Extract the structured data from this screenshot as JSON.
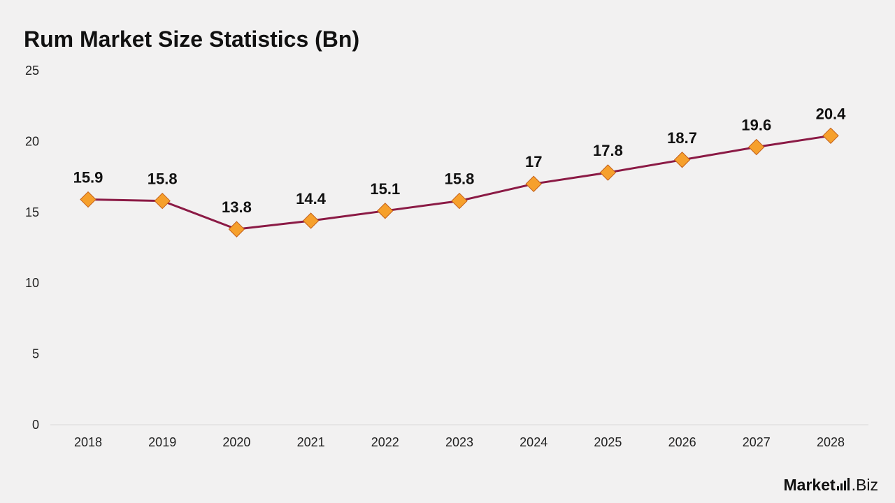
{
  "title": "Rum Market Size Statistics (Bn)",
  "brand": {
    "part1": "Market",
    "part2": ".Biz"
  },
  "colors": {
    "line": "#8b1a45",
    "marker_fill": "#f6a02c",
    "marker_stroke": "#c4601a",
    "axis": "#d9d9d9",
    "background": "#f2f1f1"
  },
  "chart_data": {
    "type": "line",
    "title": "Rum Market Size Statistics (Bn)",
    "categories": [
      "2018",
      "2019",
      "2020",
      "2021",
      "2022",
      "2023",
      "2024",
      "2025",
      "2026",
      "2027",
      "2028"
    ],
    "series": [
      {
        "values": [
          15.9,
          15.8,
          13.8,
          14.4,
          15.1,
          15.8,
          17,
          17.8,
          18.7,
          19.6,
          20.4
        ],
        "labels": [
          "15.9",
          "15.8",
          "13.8",
          "14.4",
          "15.1",
          "15.8",
          "17",
          "17.8",
          "18.7",
          "19.6",
          "20.4"
        ],
        "marker": "diamond"
      }
    ],
    "yticks": [
      "0",
      "5",
      "10",
      "15",
      "20",
      "25"
    ],
    "ylim": [
      0,
      25
    ],
    "xlabel": "",
    "ylabel": "",
    "grid": false,
    "legend": "none"
  }
}
